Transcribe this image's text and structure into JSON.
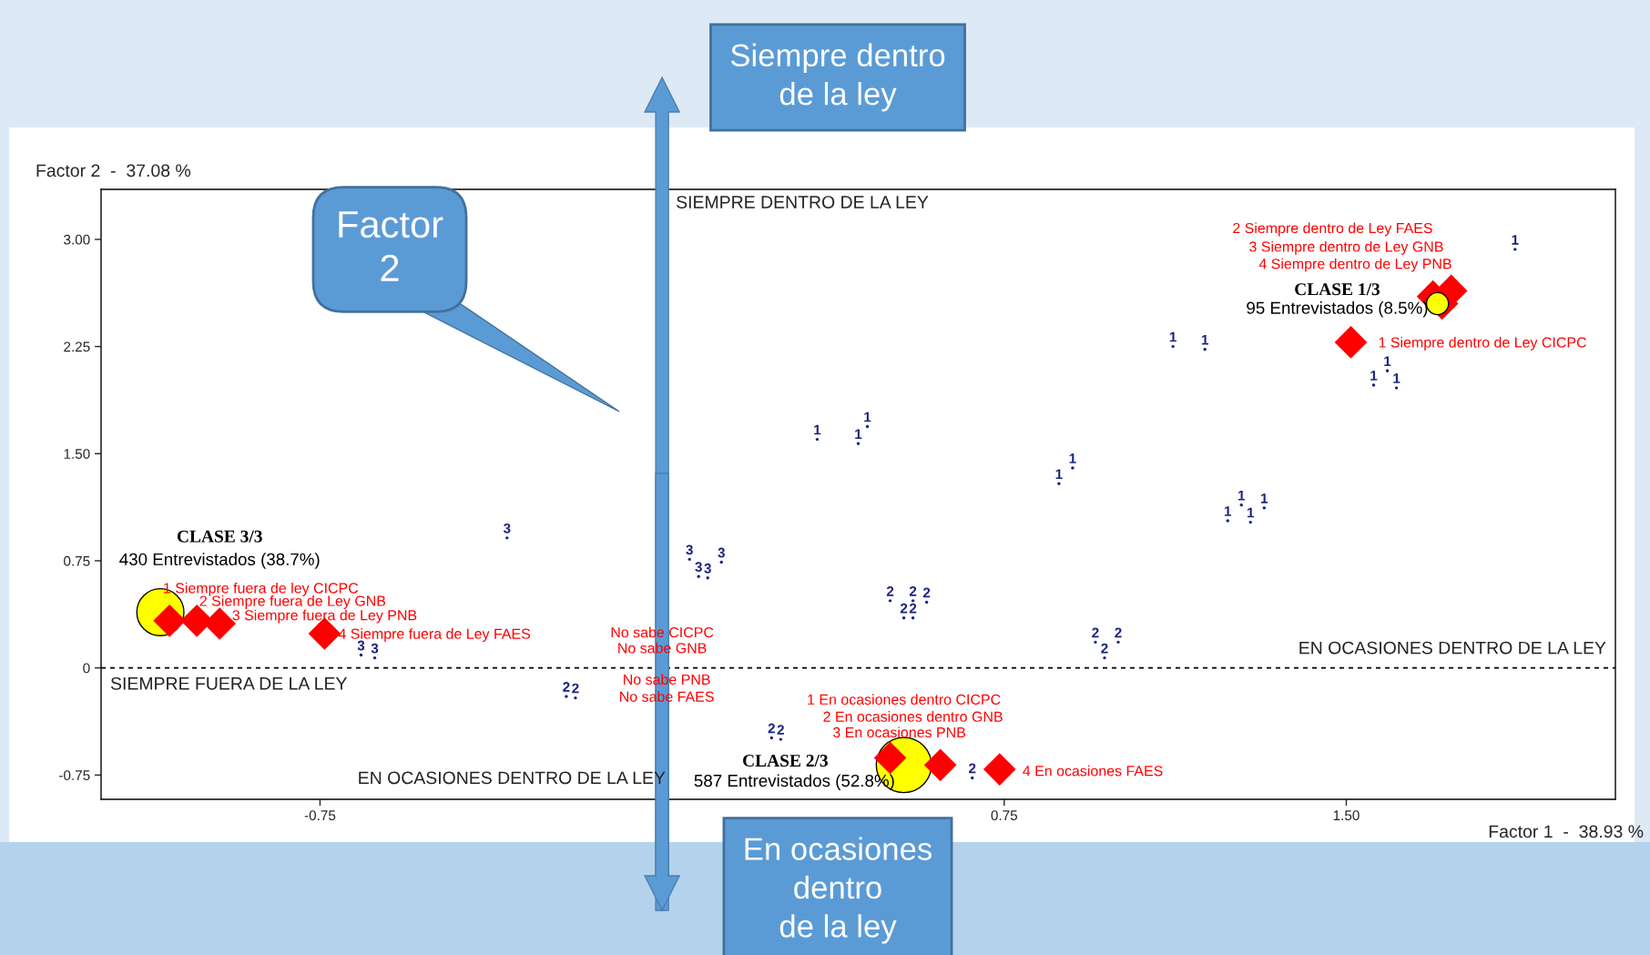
{
  "chart_data": {
    "type": "scatter",
    "xlabel": "Factor 1  -  38.93 %",
    "ylabel": "Factor 2  -  37.08 %",
    "xlim": [
      -1.23,
      2.09
    ],
    "ylim": [
      -0.92,
      3.35
    ],
    "xticks": [
      {
        "value": -0.75,
        "label": "-0.75"
      },
      {
        "value": 0,
        "label": null
      },
      {
        "value": 0.75,
        "label": "0.75"
      },
      {
        "value": 1.5,
        "label": "1.50"
      }
    ],
    "yticks": [
      {
        "value": -0.75,
        "label": "-0.75"
      },
      0,
      {
        "value": 0.75,
        "label": "0.75"
      },
      {
        "value": 1.5,
        "label": "1.50"
      },
      {
        "value": 2.25,
        "label": "2.25"
      },
      {
        "value": 3.0,
        "label": "3.00"
      }
    ],
    "grid": false,
    "legend": false,
    "ref_lines": [
      {
        "axis": "y",
        "value": 0,
        "line_style": "dashed",
        "color": "#000000"
      }
    ],
    "series": [
      {
        "name": "1",
        "color": "#1a237e",
        "x": [
          1.87,
          1.12,
          1.19,
          1.59,
          1.56,
          1.61,
          0.34,
          0.43,
          0.45,
          0.9,
          0.87,
          1.27,
          1.32,
          1.24,
          1.29
        ],
        "values": [
          2.93,
          2.25,
          2.23,
          2.08,
          1.98,
          1.96,
          1.6,
          1.57,
          1.69,
          1.4,
          1.29,
          1.14,
          1.12,
          1.03,
          1.02
        ]
      },
      {
        "name": "2",
        "color": "#1a237e",
        "x": [
          0.5,
          0.55,
          0.58,
          0.53,
          0.55,
          0.95,
          1.0,
          0.97,
          -0.21,
          -0.19,
          0.24,
          0.26,
          0.68
        ],
        "values": [
          0.47,
          0.47,
          0.46,
          0.35,
          0.35,
          0.18,
          0.18,
          0.07,
          -0.2,
          -0.21,
          -0.49,
          -0.5,
          -0.77
        ]
      },
      {
        "name": "3",
        "color": "#1a237e",
        "x": [
          -0.34,
          0.06,
          0.13,
          0.08,
          0.1,
          -0.66,
          -0.63
        ],
        "values": [
          0.91,
          0.76,
          0.74,
          0.64,
          0.63,
          0.09,
          0.07
        ]
      },
      {
        "marker": "diamond",
        "color": "#ff0000",
        "x": [
          1.73,
          1.69,
          1.71,
          1.51,
          -1.08,
          -1.02,
          -0.97,
          -0.74,
          0.5,
          0.61,
          0.74
        ],
        "values": [
          2.64,
          2.6,
          2.55,
          2.28,
          0.33,
          0.33,
          0.31,
          0.24,
          -0.63,
          -0.68,
          -0.71
        ]
      },
      {
        "type": "bubble",
        "marker": "circle",
        "color": "#ffff00",
        "x": [
          -1.1,
          0.53,
          1.7
        ],
        "values": [
          0.39,
          -0.68,
          2.55
        ],
        "sizes": [
          0.73,
          1,
          0.16
        ]
      }
    ],
    "annotations": [
      "2 Siempre dentro de Ley FAES",
      "3 Siempre dentro de Ley GNB",
      "4 Siempre dentro de Ley PNB",
      "CLASE 1/3",
      "95 Entrevistados (8.5%)",
      "1 Siempre dentro de Ley CICPC",
      "CLASE 3/3",
      "430 Entrevistados (38.7%)",
      "1 Siempre fuera de ley CICPC",
      "2 Siempre fuera de Ley GNB",
      "3 Siempre fuera de Ley PNB",
      "4 Siempre fuera de Ley FAES",
      "No sabe CICPC",
      "No sabe GNB",
      "No sabe PNB",
      "No sabe FAES",
      "1 En ocasiones dentro CICPC",
      "2 En ocasiones dentro GNB",
      "3 En ocasiones PNB",
      "4 En ocasiones FAES",
      "CLASE 2/3",
      "587 Entrevistados (52.8%)",
      "SIEMPRE DENTRO DE LA LEY",
      "SIEMPRE FUERA DE LA LEY",
      "EN OCASIONES DENTRO DE LA LEY",
      "EN OCASIONES DENTRO DE LA LEY",
      "Siempre dentro\nde la ley",
      "Factor\n2",
      "En ocasiones\ndentro\nde la ley"
    ]
  }
}
